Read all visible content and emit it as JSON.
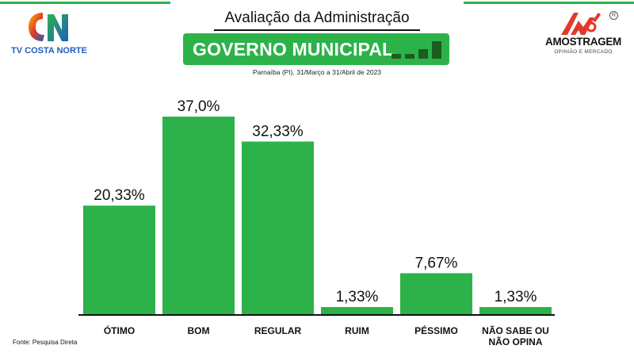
{
  "header": {
    "title": "Avaliação da Administração",
    "banner": "GOVERNO MUNICIPAL",
    "subtitle": "Parnaíba (PI), 31/Março a 31/Abril de 2023"
  },
  "left_logo": {
    "text": "TV COSTA NORTE",
    "icon": "tv-costa-norte-logo-icon"
  },
  "right_logo": {
    "text": "AMOSTRAGEM",
    "tagline": "OPINIÃO E MERCADO",
    "icon": "amostragem-logo-icon"
  },
  "footer": {
    "source": "Fonte: Pesquisa Direta"
  },
  "colors": {
    "accent": "#2db24a",
    "bar": "#2db24a",
    "text": "#111111",
    "dark_green": "#1b5e20"
  },
  "chart_data": {
    "type": "bar",
    "categories": [
      "ÓTIMO",
      "BOM",
      "REGULAR",
      "RUIM",
      "PÉSSIMO",
      "NÃO SABE OU NÃO OPINA"
    ],
    "category_lines": [
      [
        "ÓTIMO"
      ],
      [
        "BOM"
      ],
      [
        "REGULAR"
      ],
      [
        "RUIM"
      ],
      [
        "PÉSSIMO"
      ],
      [
        "NÃO SABE OU",
        "NÃO OPINA"
      ]
    ],
    "values": [
      20.33,
      37.0,
      32.33,
      1.33,
      7.67,
      1.33
    ],
    "value_labels": [
      "20,33%",
      "37,0%",
      "32,33%",
      "1,33%",
      "7,67%",
      "1,33%"
    ],
    "ylim": [
      0,
      37.0
    ],
    "grid": false,
    "legend": "none"
  }
}
